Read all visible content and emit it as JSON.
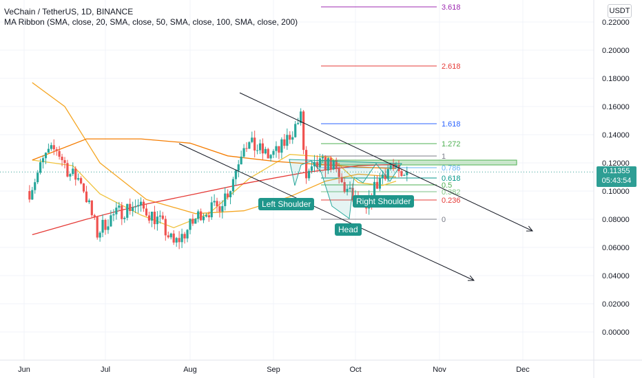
{
  "header": {
    "title": "VeChain / TetherUS, 1D, BINANCE",
    "indicator": "MA Ribbon (SMA, close, 20, SMA, close, 50, SMA, close, 100, SMA, close, 200)"
  },
  "currency_button": "USDT",
  "last_price": {
    "value": "0.11355",
    "countdown": "05:43:54",
    "color": "#2e9e94"
  },
  "annotations": {
    "left_shoulder": "Left Shoulder",
    "head": "Head",
    "right_shoulder": "Right Shoulder"
  },
  "colors": {
    "up": "#26a69a",
    "down": "#ef5350",
    "ma20": "#f0c23c",
    "ma50": "#f5a623",
    "ma100": "#f57c00",
    "ma200": "#e53935",
    "fib_zero_line": "#787b86"
  },
  "chart_data": {
    "type": "candlestick",
    "title": "VeChain / TetherUS, 1D, BINANCE",
    "y_axis": {
      "range": [
        -0.02,
        0.24
      ],
      "ticks": [
        "0.22000",
        "0.20000",
        "0.18000",
        "0.16000",
        "0.14000",
        "0.12000",
        "0.10000",
        "0.08000",
        "0.06000",
        "0.04000",
        "0.02000",
        "0.00000"
      ]
    },
    "x_axis": {
      "ticks": [
        "Jun",
        "Jul",
        "Aug",
        "Sep",
        "Oct",
        "Nov",
        "Dec"
      ]
    },
    "price_anchors": [
      {
        "date": "May 28",
        "price": 0.1
      },
      {
        "date": "Jun 3",
        "price": 0.125
      },
      {
        "date": "Jun 7",
        "price": 0.13
      },
      {
        "date": "Jun 12",
        "price": 0.112
      },
      {
        "date": "Jun 16",
        "price": 0.108
      },
      {
        "date": "Jun 22",
        "price": 0.07
      },
      {
        "date": "Jun 26",
        "price": 0.08
      },
      {
        "date": "Jul 1",
        "price": 0.086
      },
      {
        "date": "Jul 5",
        "price": 0.09
      },
      {
        "date": "Jul 10",
        "price": 0.086
      },
      {
        "date": "Jul 15",
        "price": 0.078
      },
      {
        "date": "Jul 20",
        "price": 0.062
      },
      {
        "date": "Jul 24",
        "price": 0.07
      },
      {
        "date": "Jul 30",
        "price": 0.085
      },
      {
        "date": "Aug 5",
        "price": 0.088
      },
      {
        "date": "Aug 10",
        "price": 0.103
      },
      {
        "date": "Aug 15",
        "price": 0.135
      },
      {
        "date": "Aug 20",
        "price": 0.13
      },
      {
        "date": "Aug 24",
        "price": 0.125
      },
      {
        "date": "Aug 28",
        "price": 0.128
      },
      {
        "date": "Sep 1",
        "price": 0.14
      },
      {
        "date": "Sep 5",
        "price": 0.152
      },
      {
        "date": "Sep 7",
        "price": 0.108
      },
      {
        "date": "Sep 11",
        "price": 0.118
      },
      {
        "date": "Sep 16",
        "price": 0.12
      },
      {
        "date": "Sep 20",
        "price": 0.105
      },
      {
        "date": "Sep 24",
        "price": 0.095
      },
      {
        "date": "Sep 29",
        "price": 0.085
      },
      {
        "date": "Oct 2",
        "price": 0.102
      },
      {
        "date": "Oct 5",
        "price": 0.112
      },
      {
        "date": "Oct 8",
        "price": 0.118
      },
      {
        "date": "Oct 12",
        "price": 0.108
      },
      {
        "date": "Oct 14",
        "price": 0.1135
      }
    ],
    "moving_averages": [
      {
        "name": "SMA 20",
        "color": "#f0c23c",
        "points": [
          [
            0,
            0.122
          ],
          [
            15,
            0.118
          ],
          [
            25,
            0.098
          ],
          [
            40,
            0.083
          ],
          [
            52,
            0.074
          ],
          [
            65,
            0.084
          ],
          [
            80,
            0.109
          ],
          [
            95,
            0.126
          ],
          [
            110,
            0.124
          ],
          [
            120,
            0.106
          ],
          [
            129,
            0.104
          ],
          [
            134,
            0.107
          ]
        ]
      },
      {
        "name": "SMA 50",
        "color": "#f5a623",
        "points": [
          [
            0,
            0.177
          ],
          [
            12,
            0.16
          ],
          [
            25,
            0.12
          ],
          [
            42,
            0.094
          ],
          [
            60,
            0.084
          ],
          [
            78,
            0.086
          ],
          [
            95,
            0.096
          ],
          [
            108,
            0.107
          ],
          [
            120,
            0.112
          ],
          [
            134,
            0.11
          ]
        ]
      },
      {
        "name": "SMA 100",
        "color": "#f57c00",
        "points": [
          [
            0,
            0.122
          ],
          [
            20,
            0.137
          ],
          [
            40,
            0.137
          ],
          [
            58,
            0.134
          ],
          [
            72,
            0.125
          ],
          [
            90,
            0.121
          ],
          [
            105,
            0.119
          ],
          [
            120,
            0.117
          ],
          [
            134,
            0.116
          ]
        ]
      },
      {
        "name": "SMA 200",
        "color": "#e53935",
        "points": [
          [
            0,
            0.069
          ],
          [
            20,
            0.08
          ],
          [
            40,
            0.09
          ],
          [
            60,
            0.098
          ],
          [
            80,
            0.106
          ],
          [
            100,
            0.113
          ],
          [
            120,
            0.118
          ],
          [
            134,
            0.119
          ]
        ]
      }
    ],
    "fibonacci": [
      {
        "level": "3.618",
        "color": "#9c27b0"
      },
      {
        "level": "2.618",
        "color": "#e53935"
      },
      {
        "level": "1.618",
        "color": "#2962ff"
      },
      {
        "level": "1.272",
        "color": "#4caf50"
      },
      {
        "level": "1",
        "color": "#787b86"
      },
      {
        "level": "0.786",
        "color": "#64b5f6"
      },
      {
        "level": "0.618",
        "color": "#009688"
      },
      {
        "level": "0.5",
        "color": "#4caf50"
      },
      {
        "level": "0.382",
        "color": "#81c784"
      },
      {
        "level": "0.236",
        "color": "#e53935"
      },
      {
        "level": "0",
        "color": "#787b86"
      }
    ],
    "last_price": 0.11355
  }
}
